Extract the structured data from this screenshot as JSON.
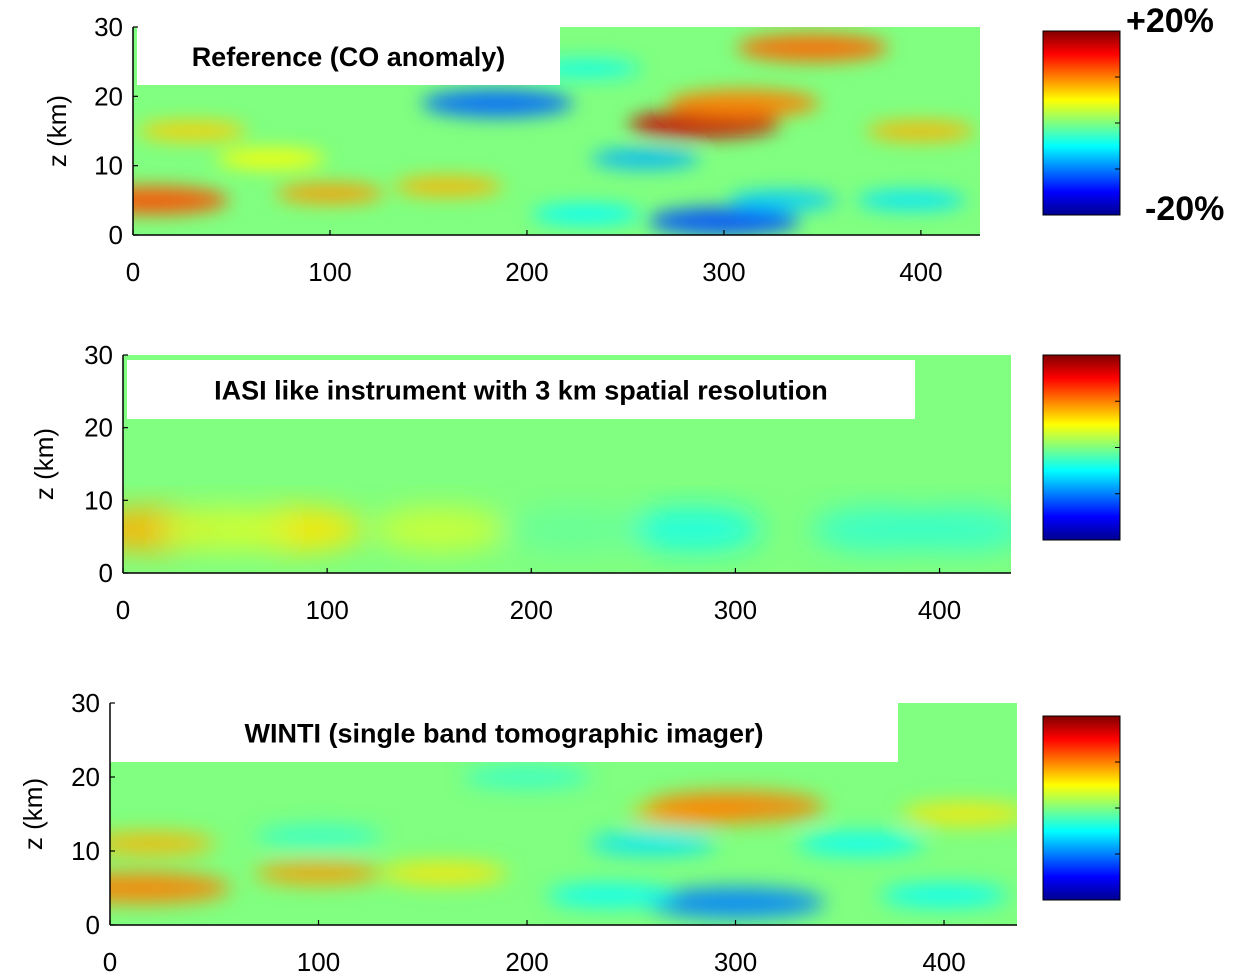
{
  "colorbar": {
    "max_label": "+20%",
    "min_label": "-20%",
    "range": [
      -20,
      20
    ],
    "colormap": "jet"
  },
  "chart_data": [
    {
      "type": "heatmap",
      "title": "Reference (CO anomaly)",
      "xlabel": "",
      "ylabel": "z (km)",
      "xlim": [
        0,
        430
      ],
      "ylim": [
        0,
        30
      ],
      "xticks": [
        0,
        100,
        200,
        300,
        400
      ],
      "yticks": [
        0,
        10,
        20,
        30
      ],
      "xtick_labels": [
        "0",
        "100",
        "200",
        "300",
        "400"
      ],
      "ytick_labels": [
        "0",
        "10",
        "20",
        "30"
      ],
      "value_unit": "%",
      "features": [
        {
          "x": 10,
          "z": 5,
          "value": 12
        },
        {
          "x": 100,
          "z": 6,
          "value": 9
        },
        {
          "x": 160,
          "z": 7,
          "value": 8
        },
        {
          "x": 30,
          "z": 15,
          "value": 7
        },
        {
          "x": 290,
          "z": 16,
          "value": 17
        },
        {
          "x": 310,
          "z": 19,
          "value": 10
        },
        {
          "x": 345,
          "z": 27,
          "value": 11
        },
        {
          "x": 400,
          "z": 15,
          "value": 8
        },
        {
          "x": 185,
          "z": 19,
          "value": -11
        },
        {
          "x": 260,
          "z": 11,
          "value": -8
        },
        {
          "x": 300,
          "z": 2,
          "value": -12
        },
        {
          "x": 330,
          "z": 5,
          "value": -7
        },
        {
          "x": 395,
          "z": 5,
          "value": -6
        },
        {
          "x": 230,
          "z": 3,
          "value": -5
        },
        {
          "x": 70,
          "z": 11,
          "value": 5
        },
        {
          "x": 230,
          "z": 24,
          "value": -4
        }
      ]
    },
    {
      "type": "heatmap",
      "title": "IASI like instrument with 3 km spatial resolution",
      "xlabel": "",
      "ylabel": "z (km)",
      "xlim": [
        0,
        435
      ],
      "ylim": [
        0,
        30
      ],
      "xticks": [
        0,
        100,
        200,
        300,
        400
      ],
      "yticks": [
        0,
        10,
        20,
        30
      ],
      "xtick_labels": [
        "0",
        "100",
        "200",
        "300",
        "400"
      ],
      "ytick_labels": [
        "0",
        "10",
        "20",
        "30"
      ],
      "value_unit": "%",
      "features": [
        {
          "x": 15,
          "z": 6,
          "value": 8
        },
        {
          "x": 85,
          "z": 6,
          "value": 6
        },
        {
          "x": 50,
          "z": 6,
          "value": 3
        },
        {
          "x": 155,
          "z": 6,
          "value": 3
        },
        {
          "x": 280,
          "z": 6,
          "value": -4
        },
        {
          "x": 370,
          "z": 6,
          "value": -3
        },
        {
          "x": 410,
          "z": 6,
          "value": -3
        },
        {
          "x": 220,
          "z": 6,
          "value": -1
        }
      ]
    },
    {
      "type": "heatmap",
      "title": "WINTI (single band tomographic imager)",
      "xlabel": "",
      "ylabel": "z (km)",
      "xlim": [
        0,
        435
      ],
      "ylim": [
        0,
        30
      ],
      "xticks": [
        0,
        100,
        200,
        300,
        400
      ],
      "yticks": [
        0,
        10,
        20,
        30
      ],
      "xtick_labels": [
        "0",
        "100",
        "200",
        "300",
        "400"
      ],
      "ytick_labels": [
        "0",
        "10",
        "20",
        "30"
      ],
      "value_unit": "%",
      "features": [
        {
          "x": 15,
          "z": 5,
          "value": 10
        },
        {
          "x": 100,
          "z": 7,
          "value": 9
        },
        {
          "x": 160,
          "z": 7,
          "value": 6
        },
        {
          "x": 20,
          "z": 11,
          "value": 8
        },
        {
          "x": 280,
          "z": 15,
          "value": 8
        },
        {
          "x": 300,
          "z": 16,
          "value": 10
        },
        {
          "x": 410,
          "z": 15,
          "value": 6
        },
        {
          "x": 300,
          "z": 3,
          "value": -10
        },
        {
          "x": 240,
          "z": 4,
          "value": -5
        },
        {
          "x": 400,
          "z": 4,
          "value": -5
        },
        {
          "x": 260,
          "z": 11,
          "value": -6
        },
        {
          "x": 360,
          "z": 11,
          "value": -5
        },
        {
          "x": 100,
          "z": 12,
          "value": -3
        },
        {
          "x": 200,
          "z": 20,
          "value": -3
        }
      ]
    }
  ]
}
